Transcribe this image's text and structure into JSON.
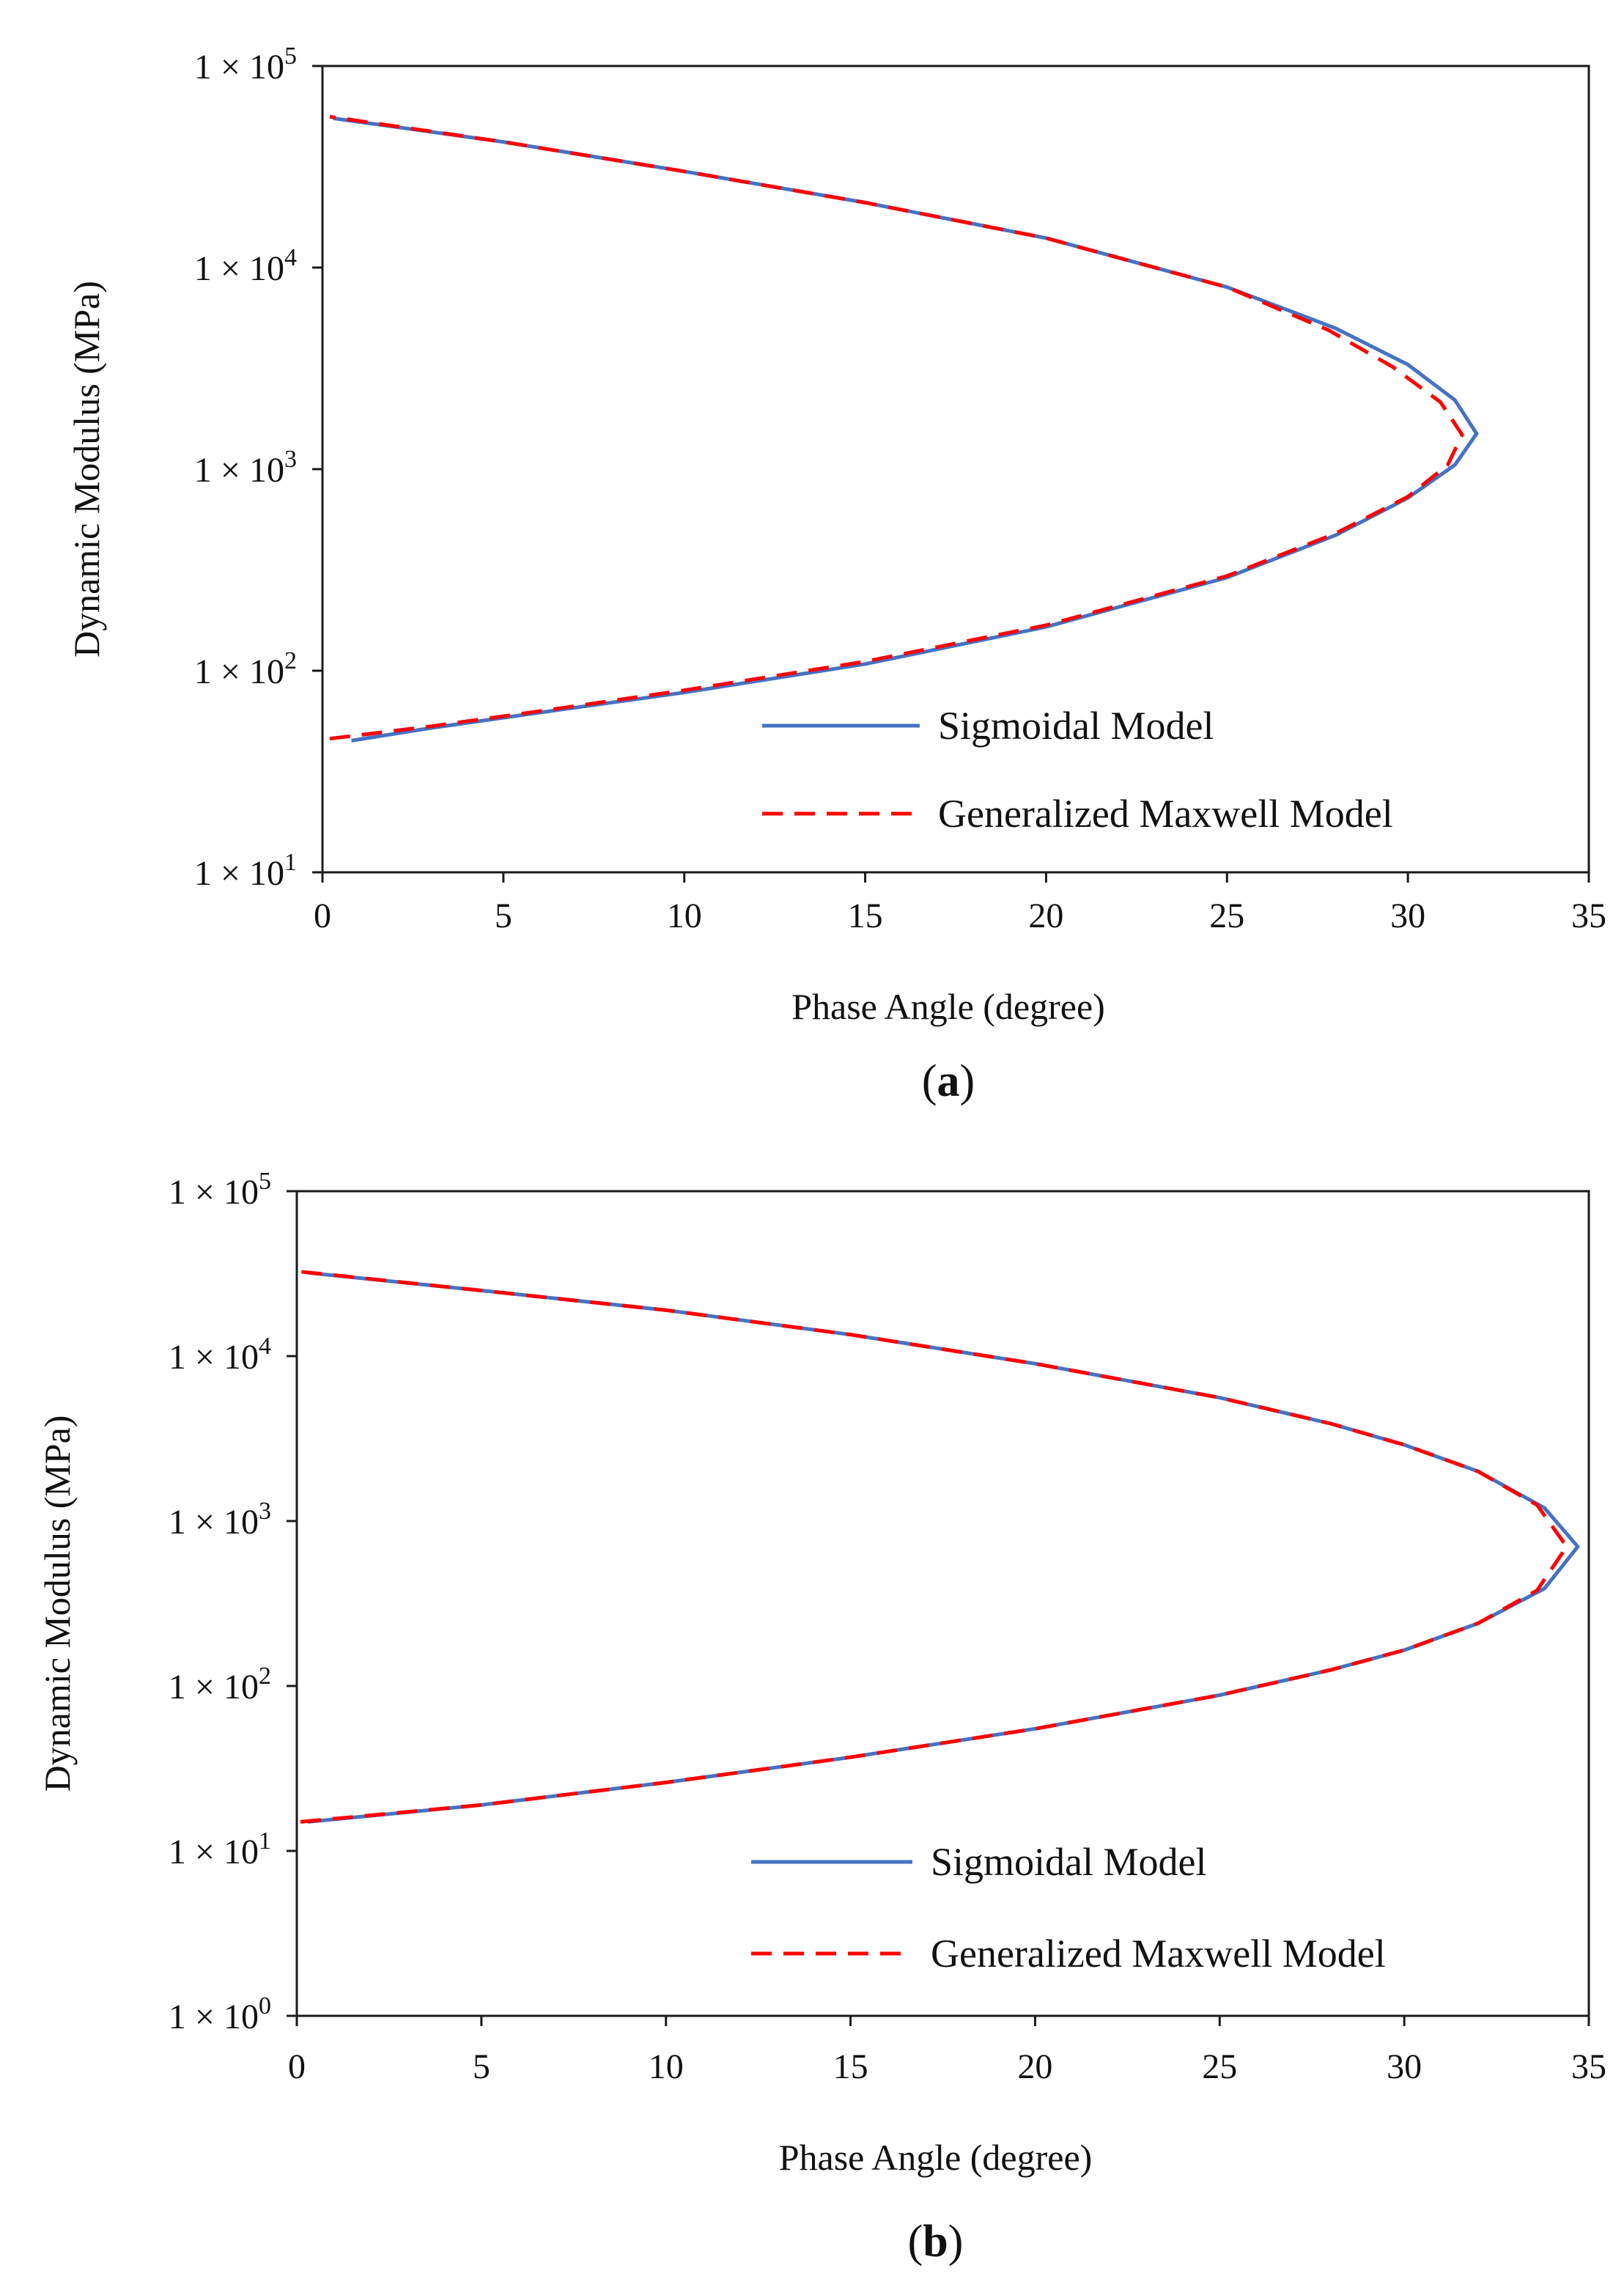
{
  "chart_data": [
    {
      "id": "a",
      "type": "line",
      "panel_label": "a",
      "xlabel": "Phase Angle (degree)",
      "ylabel": "Dynamic Modulus (MPa)",
      "yscale": "log",
      "xlim": [
        0,
        35
      ],
      "ylim_exp": [
        1,
        5
      ],
      "x_ticks": [
        "0",
        "5",
        "10",
        "15",
        "20",
        "25",
        "30",
        "35"
      ],
      "y_ticks": [
        {
          "base": "1 × 10",
          "exp": "1"
        },
        {
          "base": "1 × 10",
          "exp": "2"
        },
        {
          "base": "1 × 10",
          "exp": "3"
        },
        {
          "base": "1 × 10",
          "exp": "4"
        },
        {
          "base": "1 × 10",
          "exp": "5"
        }
      ],
      "grid": false,
      "legend_position": "lower-right",
      "series": [
        {
          "name": "Sigmoidal Model",
          "style": "solid",
          "color": "#4472C4",
          "x": [
            0.8,
            3,
            6,
            10,
            15,
            20,
            25,
            28,
            30,
            31.3,
            31.9,
            31.3,
            30,
            28,
            25,
            20,
            15,
            10,
            5,
            0.3
          ],
          "y": [
            45,
            52,
            62,
            78,
            108,
            165,
            290,
            470,
            720,
            1050,
            1500,
            2200,
            3300,
            5000,
            8000,
            14000,
            21000,
            30000,
            42000,
            55000
          ]
        },
        {
          "name": "Generalized Maxwell Model",
          "style": "dashed",
          "color": "#FF0000",
          "x": [
            0.2,
            3,
            6,
            10,
            15,
            20,
            25,
            28,
            30,
            31.1,
            31.5,
            30.9,
            29.6,
            27.8,
            25,
            20,
            15,
            10,
            5,
            0.2
          ],
          "y": [
            46,
            53,
            63,
            80,
            111,
            168,
            295,
            480,
            730,
            1050,
            1480,
            2150,
            3200,
            4900,
            8000,
            14000,
            21000,
            30000,
            42000,
            56000
          ]
        }
      ]
    },
    {
      "id": "b",
      "type": "line",
      "panel_label": "b",
      "xlabel": "Phase Angle (degree)",
      "ylabel": "Dynamic Modulus (MPa)",
      "yscale": "log",
      "xlim": [
        0,
        35
      ],
      "ylim_exp": [
        0,
        5
      ],
      "x_ticks": [
        "0",
        "5",
        "10",
        "15",
        "20",
        "25",
        "30",
        "35"
      ],
      "y_ticks": [
        {
          "base": "1 × 10",
          "exp": "0"
        },
        {
          "base": "1 × 10",
          "exp": "1"
        },
        {
          "base": "1 × 10",
          "exp": "2"
        },
        {
          "base": "1 × 10",
          "exp": "3"
        },
        {
          "base": "1 × 10",
          "exp": "4"
        },
        {
          "base": "1 × 10",
          "exp": "5"
        }
      ],
      "grid": false,
      "legend_position": "lower-right",
      "series": [
        {
          "name": "Sigmoidal Model",
          "style": "solid",
          "color": "#4472C4",
          "x": [
            0.3,
            5,
            10,
            15,
            20,
            25,
            28,
            30,
            32,
            33.8,
            34.7,
            33.8,
            32,
            30,
            28,
            25,
            20,
            15,
            10,
            5,
            0.3
          ],
          "y": [
            15,
            19,
            26,
            37,
            55,
            88,
            125,
            165,
            240,
            390,
            700,
            1200,
            2000,
            2900,
            3900,
            5600,
            9000,
            13500,
            19000,
            25000,
            32000
          ]
        },
        {
          "name": "Generalized Maxwell Model",
          "style": "dashed",
          "color": "#FF0000",
          "x": [
            0.1,
            5,
            10,
            15,
            20,
            25,
            28,
            30,
            32,
            33.6,
            34.4,
            33.6,
            32,
            30,
            28,
            25,
            20,
            15,
            10,
            5,
            0.1
          ],
          "y": [
            15,
            19,
            26,
            37,
            55,
            88,
            125,
            165,
            240,
            380,
            700,
            1250,
            2000,
            2900,
            3900,
            5600,
            9000,
            13500,
            19000,
            25000,
            32500
          ]
        }
      ]
    }
  ]
}
